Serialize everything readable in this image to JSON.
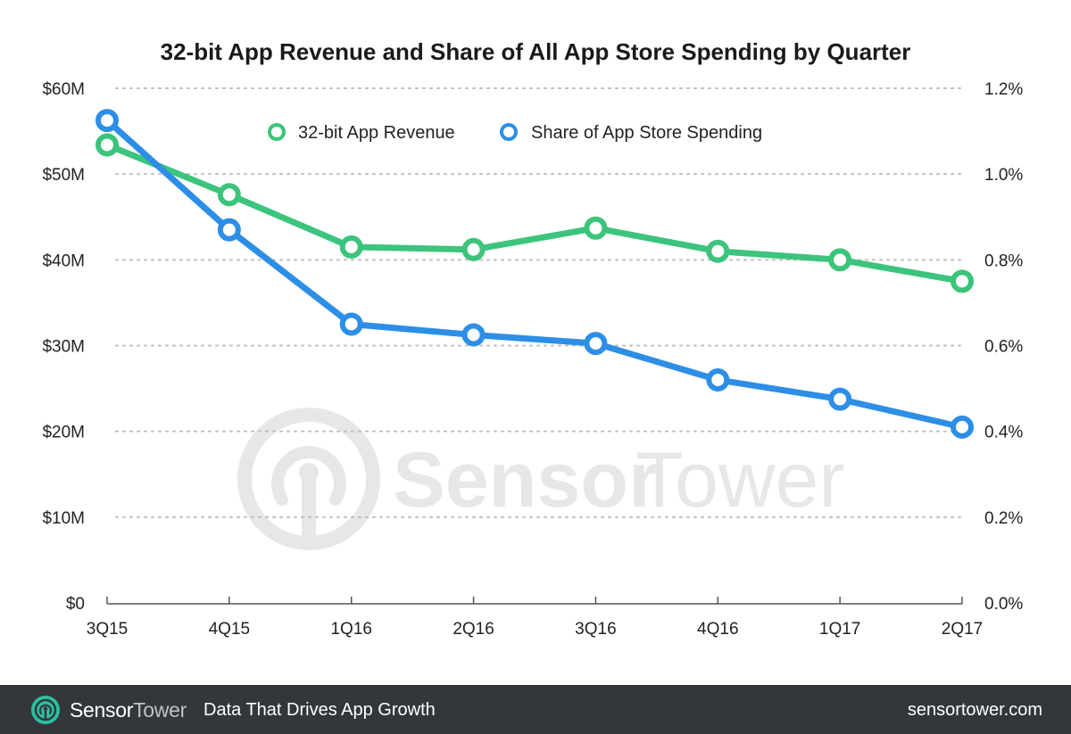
{
  "chart_data": {
    "type": "line",
    "title": "32-bit App Revenue and Share of All App Store Spending by Quarter",
    "categories": [
      "3Q15",
      "4Q15",
      "1Q16",
      "2Q16",
      "3Q16",
      "4Q16",
      "1Q17",
      "2Q17"
    ],
    "y_left": {
      "ylim": [
        0,
        60
      ],
      "ticks": [
        0,
        10,
        20,
        30,
        40,
        50,
        60
      ],
      "tick_labels": [
        "$0",
        "$10M",
        "$20M",
        "$30M",
        "$40M",
        "$50M",
        "$60M"
      ]
    },
    "y_right": {
      "ylim": [
        0,
        1.2
      ],
      "ticks": [
        0,
        0.2,
        0.4,
        0.6,
        0.8,
        1.0,
        1.2
      ],
      "tick_labels": [
        "0.0%",
        "0.2%",
        "0.4%",
        "0.6%",
        "0.8%",
        "1.0%",
        "1.2%"
      ]
    },
    "grid": true,
    "legend": "top-center",
    "series": [
      {
        "name": "32-bit App Revenue",
        "axis": "left",
        "color": "#3cc47c",
        "values": [
          53.4,
          47.6,
          41.5,
          41.2,
          43.7,
          41.0,
          40.0,
          37.5
        ]
      },
      {
        "name": "Share of App Store Spending",
        "axis": "right",
        "color": "#2d8ee6",
        "values": [
          1.125,
          0.87,
          0.65,
          0.625,
          0.605,
          0.52,
          0.475,
          0.41
        ]
      }
    ]
  },
  "watermark": {
    "brand_part1": "Sensor",
    "brand_part2": "Tower"
  },
  "footer": {
    "brand_part1": "Sensor",
    "brand_part2": "Tower",
    "tagline": "Data That Drives App Growth",
    "url": "sensortower.com"
  }
}
